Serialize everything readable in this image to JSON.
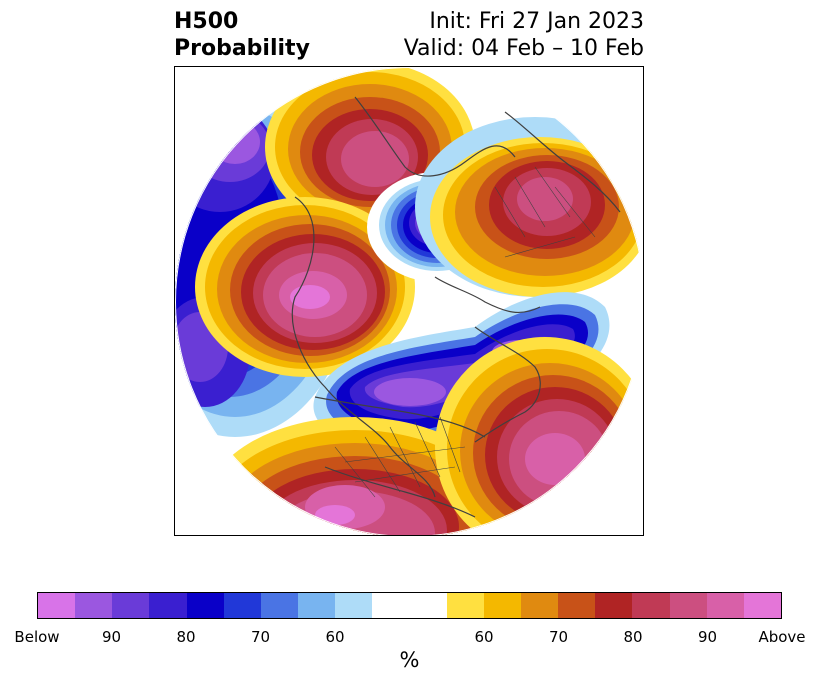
{
  "title": {
    "left_line1": "H500",
    "left_line2": "Probability",
    "right_line1": "Init: Fri 27 Jan 2023",
    "right_line2": "Valid: 04 Feb – 10 Feb"
  },
  "colorbar": {
    "colors": [
      "#d873e8",
      "#9b57e0",
      "#6a3bd8",
      "#3a1fd0",
      "#0a00c8",
      "#2138d8",
      "#4a74e4",
      "#78b4f0",
      "#aedcf8",
      "#ffffff",
      "#ffe040",
      "#f4b800",
      "#e08a10",
      "#c85218",
      "#b02424",
      "#c03a55",
      "#cc4f80",
      "#d860a8",
      "#e475d8"
    ],
    "tick_labels": [
      "Below",
      "90",
      "80",
      "70",
      "60",
      "60",
      "70",
      "80",
      "90",
      "Above"
    ],
    "unit_label": "%"
  },
  "map": {
    "projection": "north polar stereographic",
    "features": [
      "coastlines",
      "country borders",
      "state borders"
    ],
    "anomaly_regions": [
      {
        "name": "north-pacific-below",
        "category": "below",
        "peak": "90"
      },
      {
        "name": "eastern-canada-below",
        "category": "below",
        "peak": "90"
      },
      {
        "name": "arctic-russia-below",
        "category": "below",
        "peak": "90"
      },
      {
        "name": "siberia-above",
        "category": "above",
        "peak": "90"
      },
      {
        "name": "eurasia-above",
        "category": "above",
        "peak": "90"
      },
      {
        "name": "europe-above",
        "category": "above",
        "peak": "90"
      },
      {
        "name": "north-america-above",
        "category": "above",
        "peak": "Above"
      },
      {
        "name": "north-atlantic-above",
        "category": "above",
        "peak": "90"
      }
    ]
  }
}
